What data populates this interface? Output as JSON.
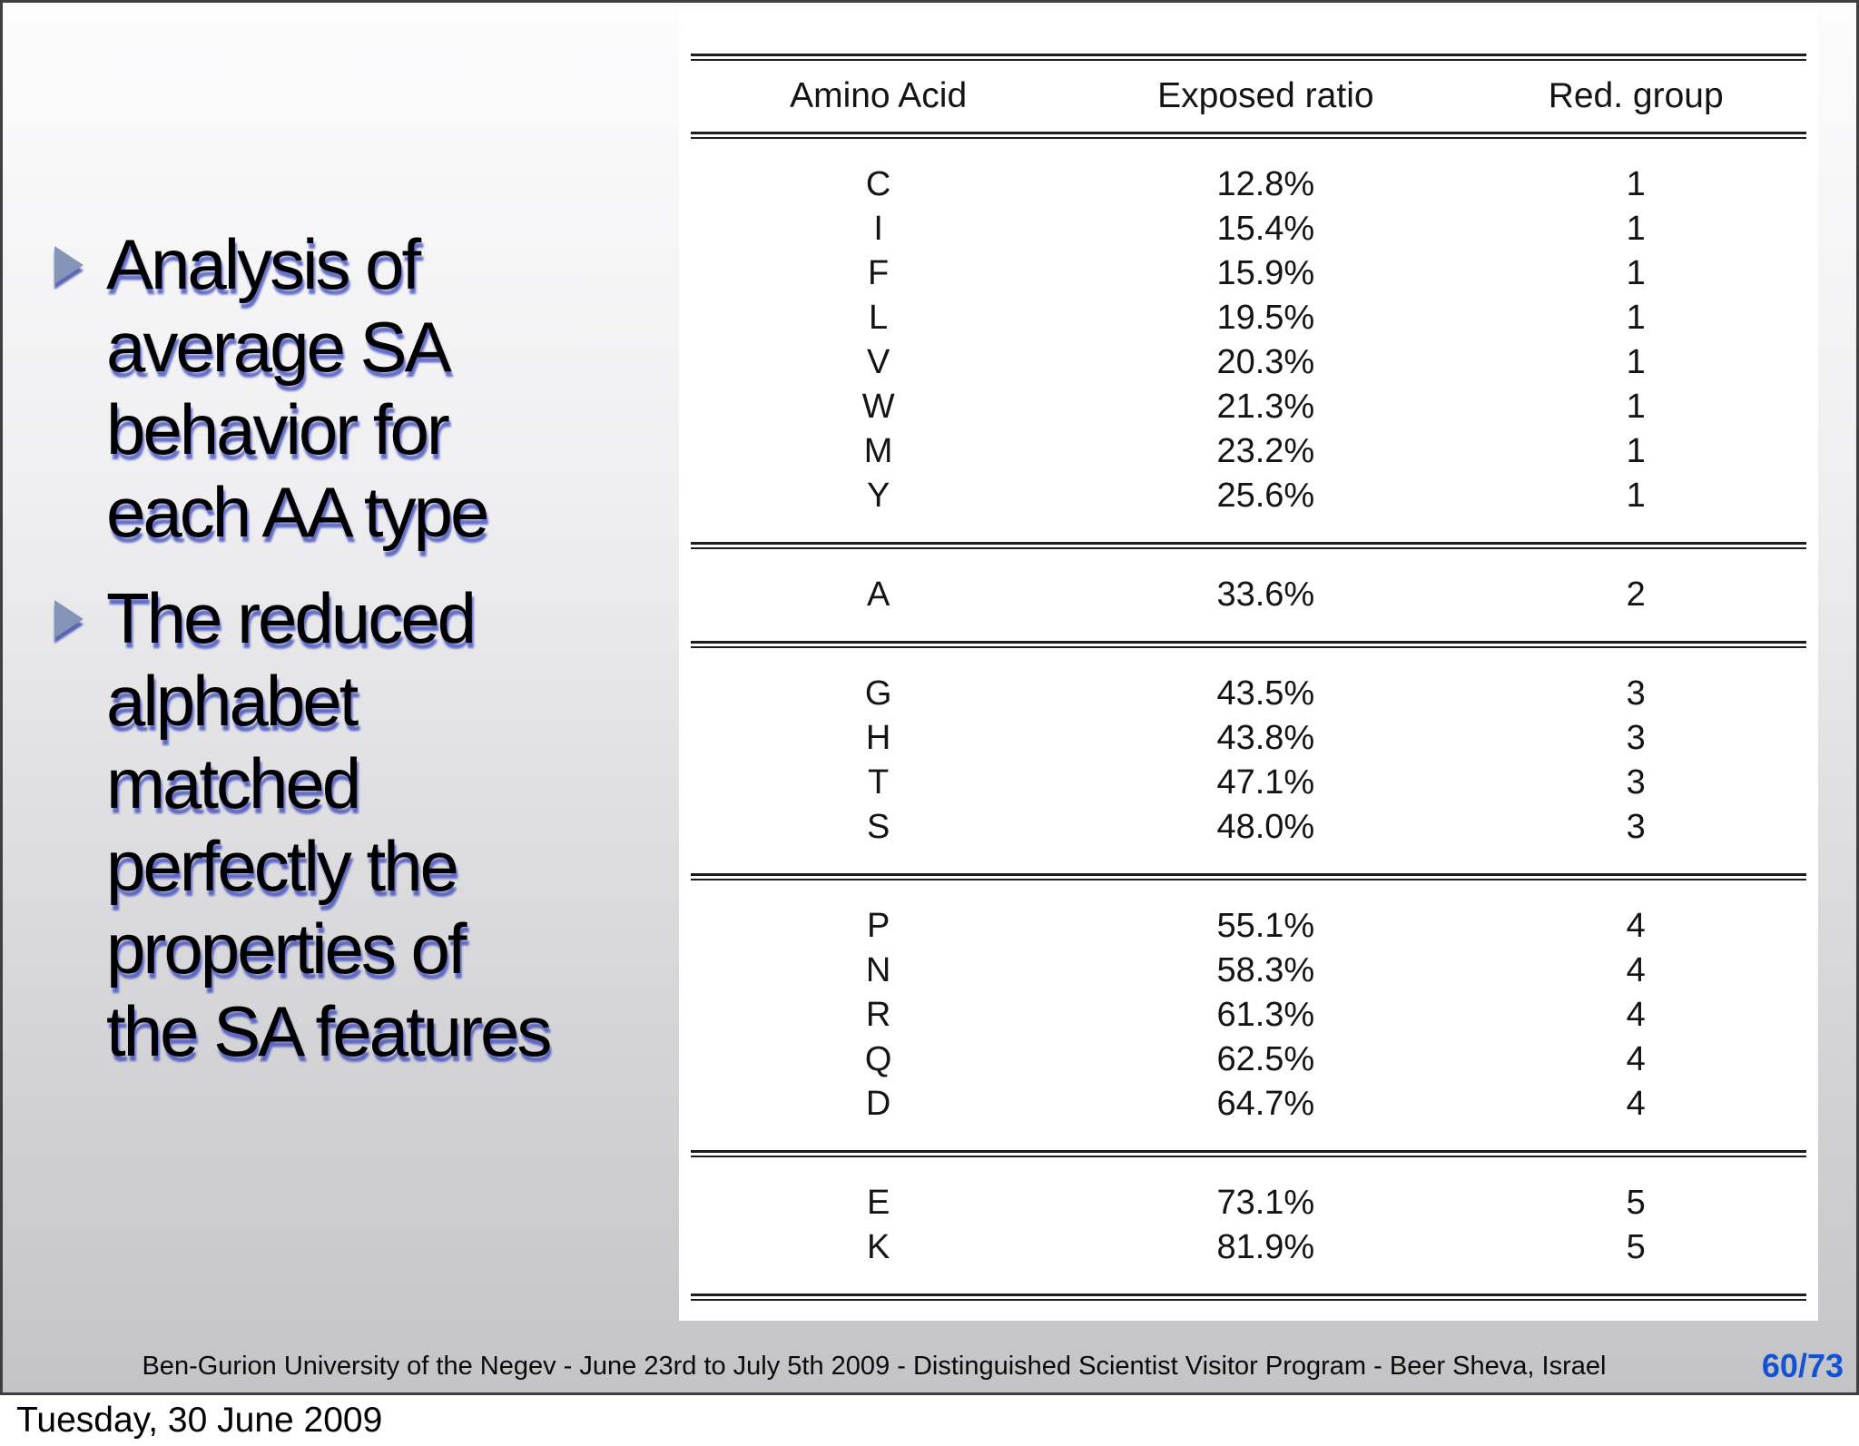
{
  "slide": {
    "bullets": [
      "Analysis of average SA behavior for each AA type",
      "The reduced alphabet matched perfectly the properties of the SA features"
    ],
    "table": {
      "headers": [
        "Amino Acid",
        "Exposed ratio",
        "Red. group"
      ],
      "groups": [
        {
          "rows": [
            [
              "C",
              "12.8%",
              "1"
            ],
            [
              "I",
              "15.4%",
              "1"
            ],
            [
              "F",
              "15.9%",
              "1"
            ],
            [
              "L",
              "19.5%",
              "1"
            ],
            [
              "V",
              "20.3%",
              "1"
            ],
            [
              "W",
              "21.3%",
              "1"
            ],
            [
              "M",
              "23.2%",
              "1"
            ],
            [
              "Y",
              "25.6%",
              "1"
            ]
          ]
        },
        {
          "rows": [
            [
              "A",
              "33.6%",
              "2"
            ]
          ]
        },
        {
          "rows": [
            [
              "G",
              "43.5%",
              "3"
            ],
            [
              "H",
              "43.8%",
              "3"
            ],
            [
              "T",
              "47.1%",
              "3"
            ],
            [
              "S",
              "48.0%",
              "3"
            ]
          ]
        },
        {
          "rows": [
            [
              "P",
              "55.1%",
              "4"
            ],
            [
              "N",
              "58.3%",
              "4"
            ],
            [
              "R",
              "61.3%",
              "4"
            ],
            [
              "Q",
              "62.5%",
              "4"
            ],
            [
              "D",
              "64.7%",
              "4"
            ]
          ]
        },
        {
          "rows": [
            [
              "E",
              "73.1%",
              "5"
            ],
            [
              "K",
              "81.9%",
              "5"
            ]
          ]
        }
      ]
    },
    "footer": {
      "text": "Ben-Gurion University of the Negev - June 23rd to July 5th 2009 -  Distinguished Scientist Visitor Program - Beer Sheva, Israel",
      "page": "60/73",
      "page_color": "#1352d1"
    }
  },
  "status_bar": {
    "date": "Tuesday, 30 June 2009"
  }
}
